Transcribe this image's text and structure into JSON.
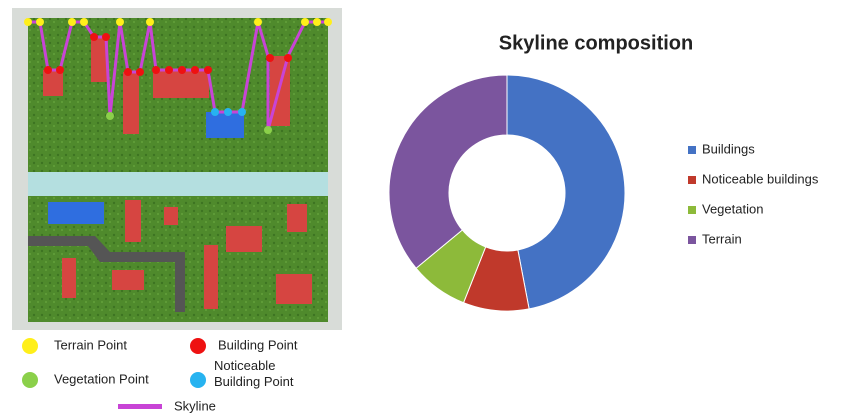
{
  "chart_data": {
    "type": "donut",
    "title": "Skyline composition",
    "categories": [
      "Buildings",
      "Noticeable buildings",
      "Vegetation",
      "Terrain"
    ],
    "values": [
      47,
      9,
      8,
      36
    ],
    "colors": [
      "#4472c4",
      "#c0392b",
      "#8dba3a",
      "#7b559e"
    ],
    "legend": "right"
  },
  "illustration": {
    "legend": [
      "Terrain Point",
      "Building Point",
      "Vegetation Point",
      "Noticeable Building Point",
      "Skyline"
    ]
  }
}
